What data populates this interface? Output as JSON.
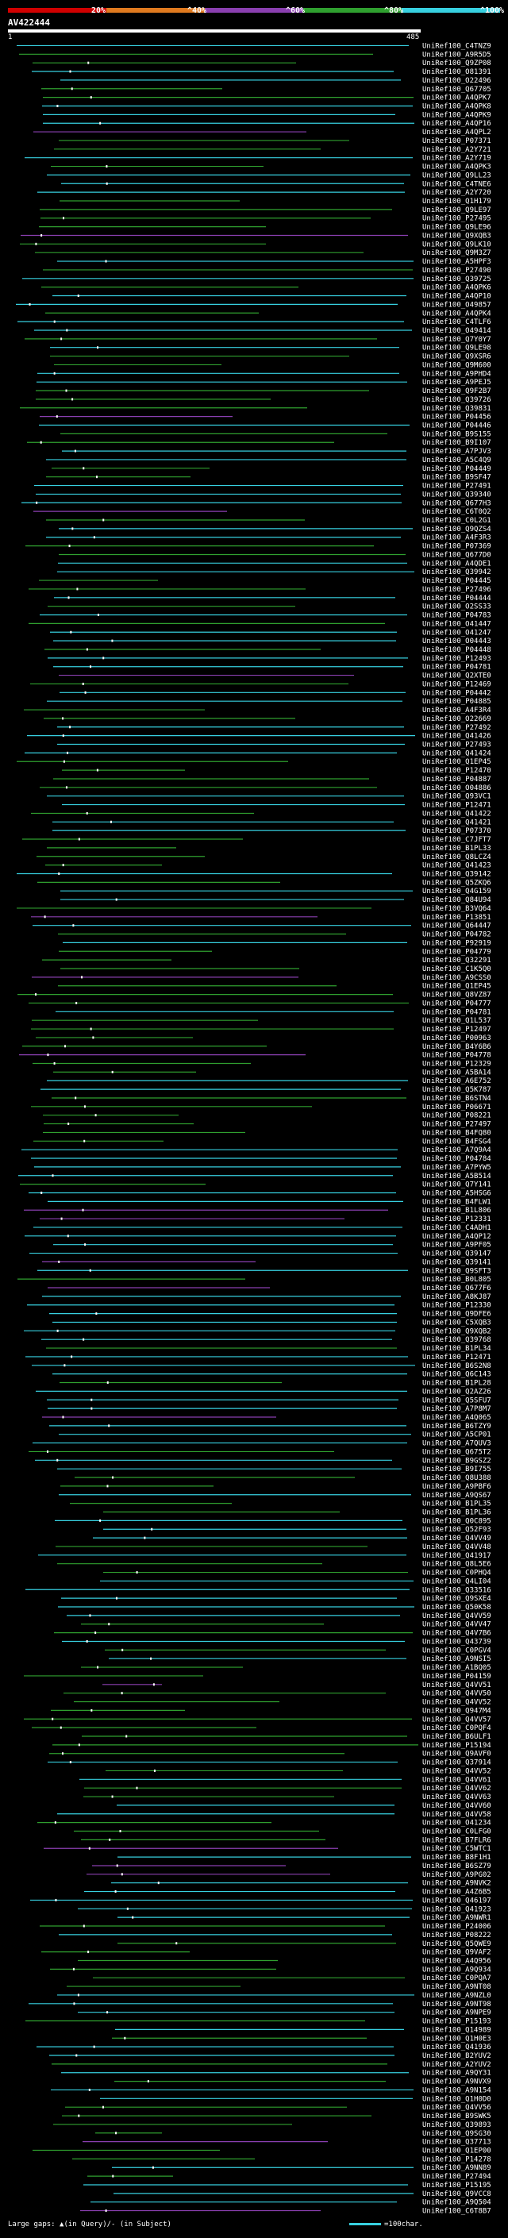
{
  "legend": {
    "ticks": [
      "20%",
      "^40%",
      "^60%",
      "^80%",
      "^100%"
    ],
    "colors": [
      "#d00000",
      "#e07a1f",
      "#8a3fb0",
      "#2fa02f",
      "#37d0e0"
    ]
  },
  "query": {
    "name": "AV422444",
    "start": "1",
    "end": "485"
  },
  "footer": {
    "large_gaps": "Large gaps: ▲(in Query)/- (in Subject)",
    "scale": "=100char."
  },
  "chart_data": {
    "type": "alignment",
    "query_length": 485,
    "hits": [
      "UniRef100_C4TNZ9",
      "UniRef100_A9R5D5",
      "UniRef100_Q9ZP08",
      "UniRef100_O81391",
      "UniRef100_O22496",
      "UniRef100_Q67705",
      "UniRef100_A4QPK7",
      "UniRef100_A4QPK8",
      "UniRef100_A4QPK9",
      "UniRef100_A4QP16",
      "UniRef100_A4QPL2",
      "UniRef100_P07371",
      "UniRef100_A2Y721",
      "UniRef100_A2Y719",
      "UniRef100_A4QPK3",
      "UniRef100_Q9LL23",
      "UniRef100_C4TNE6",
      "UniRef100_A2Y720",
      "UniRef100_Q1H179",
      "UniRef100_Q9LE97",
      "UniRef100_P27495",
      "UniRef100_Q9LE96",
      "UniRef100_Q9XQB3",
      "UniRef100_Q9LK10",
      "UniRef100_Q9M3Z7",
      "UniRef100_A5HPF3",
      "UniRef100_P27490",
      "UniRef100_Q39725",
      "UniRef100_A4QPK6",
      "UniRef100_A4QP10",
      "UniRef100_O49857",
      "UniRef100_A4QPK4",
      "UniRef100_C4TLF6",
      "UniRef100_O49414",
      "UniRef100_Q7Y0Y7",
      "UniRef100_Q9LE98",
      "UniRef100_Q9XSR6",
      "UniRef100_Q9M600",
      "UniRef100_A9PHD4",
      "UniRef100_A9PEJ5",
      "UniRef100_Q9F2B7",
      "UniRef100_Q39726",
      "UniRef100_Q39831",
      "UniRef100_P04456",
      "UniRef100_P04446",
      "UniRef100_B9S155",
      "UniRef100_B9I107",
      "UniRef100_A7PJV3",
      "UniRef100_A5C4Q9",
      "UniRef100_P04449",
      "UniRef100_B9SF47",
      "UniRef100_P27491",
      "UniRef100_Q39340",
      "UniRef100_Q677H3",
      "UniRef100_C6T0Q2",
      "UniRef100_C0L2G1",
      "UniRef100_Q9QZS4",
      "UniRef100_A4F3R3",
      "UniRef100_P07369",
      "UniRef100_Q677D0",
      "UniRef100_A4QDE1",
      "UniRef100_Q39942",
      "UniRef100_P04445",
      "UniRef100_P27496",
      "UniRef100_P04444",
      "UniRef100_O2SS33",
      "UniRef100_P04783",
      "UniRef100_O41447",
      "UniRef100_O41247",
      "UniRef100_O04443",
      "UniRef100_P04448",
      "UniRef100_P12493",
      "UniRef100_P04781",
      "UniRef100_Q2XTE0",
      "UniRef100_P12469",
      "UniRef100_P04442",
      "UniRef100_P04885",
      "UniRef100_A4F3R4",
      "UniRef100_O22669",
      "UniRef100_P27492",
      "UniRef100_Q41426",
      "UniRef100_P27493",
      "UniRef100_Q41424",
      "UniRef100_Q1EP45",
      "UniRef100_P12470",
      "UniRef100_P04887",
      "UniRef100_O04886",
      "UniRef100_Q93VC1",
      "UniRef100_P12471",
      "UniRef100_Q41422",
      "UniRef100_Q41421",
      "UniRef100_P07370",
      "UniRef100_C7JFT7",
      "UniRef100_B1PL33",
      "UniRef100_Q8LCZ4",
      "UniRef100_Q41423",
      "UniRef100_Q39142",
      "UniRef100_Q5ZKQ6",
      "UniRef100_Q4G159",
      "UniRef100_Q84U94",
      "UniRef100_B3VQ64",
      "UniRef100_P13851",
      "UniRef100_Q64447",
      "UniRef100_P04782",
      "UniRef100_P92919",
      "UniRef100_P04779",
      "UniRef100_Q32291",
      "UniRef100_C1K5Q0",
      "UniRef100_A9CSS0",
      "UniRef100_Q1EP45",
      "UniRef100_Q8VZ87",
      "UniRef100_P04777",
      "UniRef100_P04781",
      "UniRef100_Q1L537",
      "UniRef100_P12497",
      "UniRef100_P00963",
      "UniRef100_B4Y6B6",
      "UniRef100_P04778",
      "UniRef100_P12329",
      "UniRef100_A5BA14",
      "UniRef100_A6E752",
      "UniRef100_Q5K787",
      "UniRef100_B6STN4",
      "UniRef100_P06671",
      "UniRef100_P08221",
      "UniRef100_P27497",
      "UniRef100_B4FQ80",
      "UniRef100_B4FSG4",
      "UniRef100_A7Q9A4",
      "UniRef100_P04784",
      "UniRef100_A7PYW5",
      "UniRef100_A5B514",
      "UniRef100_Q7Y141",
      "UniRef100_A5HSG6",
      "UniRef100_B4FLW1",
      "UniRef100_B1L806",
      "UniRef100_P12331",
      "UniRef100_C4ADH1",
      "UniRef100_A4QP12",
      "UniRef100_A9PF05",
      "UniRef100_Q39147",
      "UniRef100_Q39141",
      "UniRef100_Q9SFT3",
      "UniRef100_B0L805",
      "UniRef100_Q677F6",
      "UniRef100_A8KJ87",
      "UniRef100_P12330",
      "UniRef100_Q9DFE6",
      "UniRef100_C5XQB3",
      "UniRef100_Q9XQB2",
      "UniRef100_Q39768",
      "UniRef100_B1PL34",
      "UniRef100_P12471",
      "UniRef100_B6S2N8",
      "UniRef100_Q6C143",
      "UniRef100_B1PL28",
      "UniRef100_Q2AZ26",
      "UniRef100_Q5SFU7",
      "UniRef100_A7P8M7",
      "UniRef100_A4Q065",
      "UniRef100_B6TZY9",
      "UniRef100_A5CP01",
      "UniRef100_A7QUV3",
      "UniRef100_Q675T2",
      "UniRef100_B9GSZ2",
      "UniRef100_B9I755",
      "UniRef100_Q8U388",
      "UniRef100_A9PBF6",
      "UniRef100_A9QS67",
      "UniRef100_B1PL35",
      "UniRef100_B1PL36",
      "UniRef100_Q0C895",
      "UniRef100_Q52F93",
      "UniRef100_Q4VV49",
      "UniRef100_Q4VV48",
      "UniRef100_Q41917",
      "UniRef100_Q8L5E6",
      "UniRef100_C0PHQ4",
      "UniRef100_Q4LI04",
      "UniRef100_Q33516",
      "UniRef100_Q9SXE4",
      "UniRef100_Q50K58",
      "UniRef100_Q4VV59",
      "UniRef100_Q4VV47",
      "UniRef100_Q4V7B6",
      "UniRef100_Q43739",
      "UniRef100_C0PGV4",
      "UniRef100_A9NSI5",
      "UniRef100_A1BQ05",
      "UniRef100_P04159",
      "UniRef100_Q4VV51",
      "UniRef100_Q4VV50",
      "UniRef100_Q4VV52",
      "UniRef100_Q947M4",
      "UniRef100_Q4VV57",
      "UniRef100_C0PQF4",
      "UniRef100_B6ULF1",
      "UniRef100_P15194",
      "UniRef100_Q9AVF0",
      "UniRef100_Q37914",
      "UniRef100_Q4VV52",
      "UniRef100_Q4VV61",
      "UniRef100_Q4VV62",
      "UniRef100_Q4VV63",
      "UniRef100_Q4VV60",
      "UniRef100_Q4VV58",
      "UniRef100_O41234",
      "UniRef100_C0LFG0",
      "UniRef100_B7FLR6",
      "UniRef100_C5WTC1",
      "UniRef100_B8F1H1",
      "UniRef100_B6SZ79",
      "UniRef100_A9PG02",
      "UniRef100_A9NVK2",
      "UniRef100_A4Z6B5",
      "UniRef100_Q46197",
      "UniRef100_Q41923",
      "UniRef100_A9NWR1",
      "UniRef100_P24006",
      "UniRef100_P08222",
      "UniRef100_Q5QWE9",
      "UniRef100_Q9VAF2",
      "UniRef100_A4Q956",
      "UniRef100_A9Q934",
      "UniRef100_C0PQA7",
      "UniRef100_A9NT08",
      "UniRef100_A9NZL0",
      "UniRef100_A9NT98",
      "UniRef100_A9NPE9",
      "UniRef100_P15193",
      "UniRef100_Q14989",
      "UniRef100_Q1H0E3",
      "UniRef100_Q41936",
      "UniRef100_B2YUV2",
      "UniRef100_A2YUV2",
      "UniRef100_A9QY31",
      "UniRef100_A9NVX9",
      "UniRef100_A9N154",
      "UniRef100_Q1H0D0",
      "UniRef100_Q4VV56",
      "UniRef100_B9SWK5",
      "UniRef100_Q39893",
      "UniRef100_Q9SG30",
      "UniRef100_Q37713",
      "UniRef100_Q1EP00",
      "UniRef100_P14278",
      "UniRef100_A9NN89",
      "UniRef100_P27494",
      "UniRef100_P15195",
      "UniRef100_Q9VCC8",
      "UniRef100_A9Q504",
      "UniRef100_C6T8B7"
    ]
  }
}
